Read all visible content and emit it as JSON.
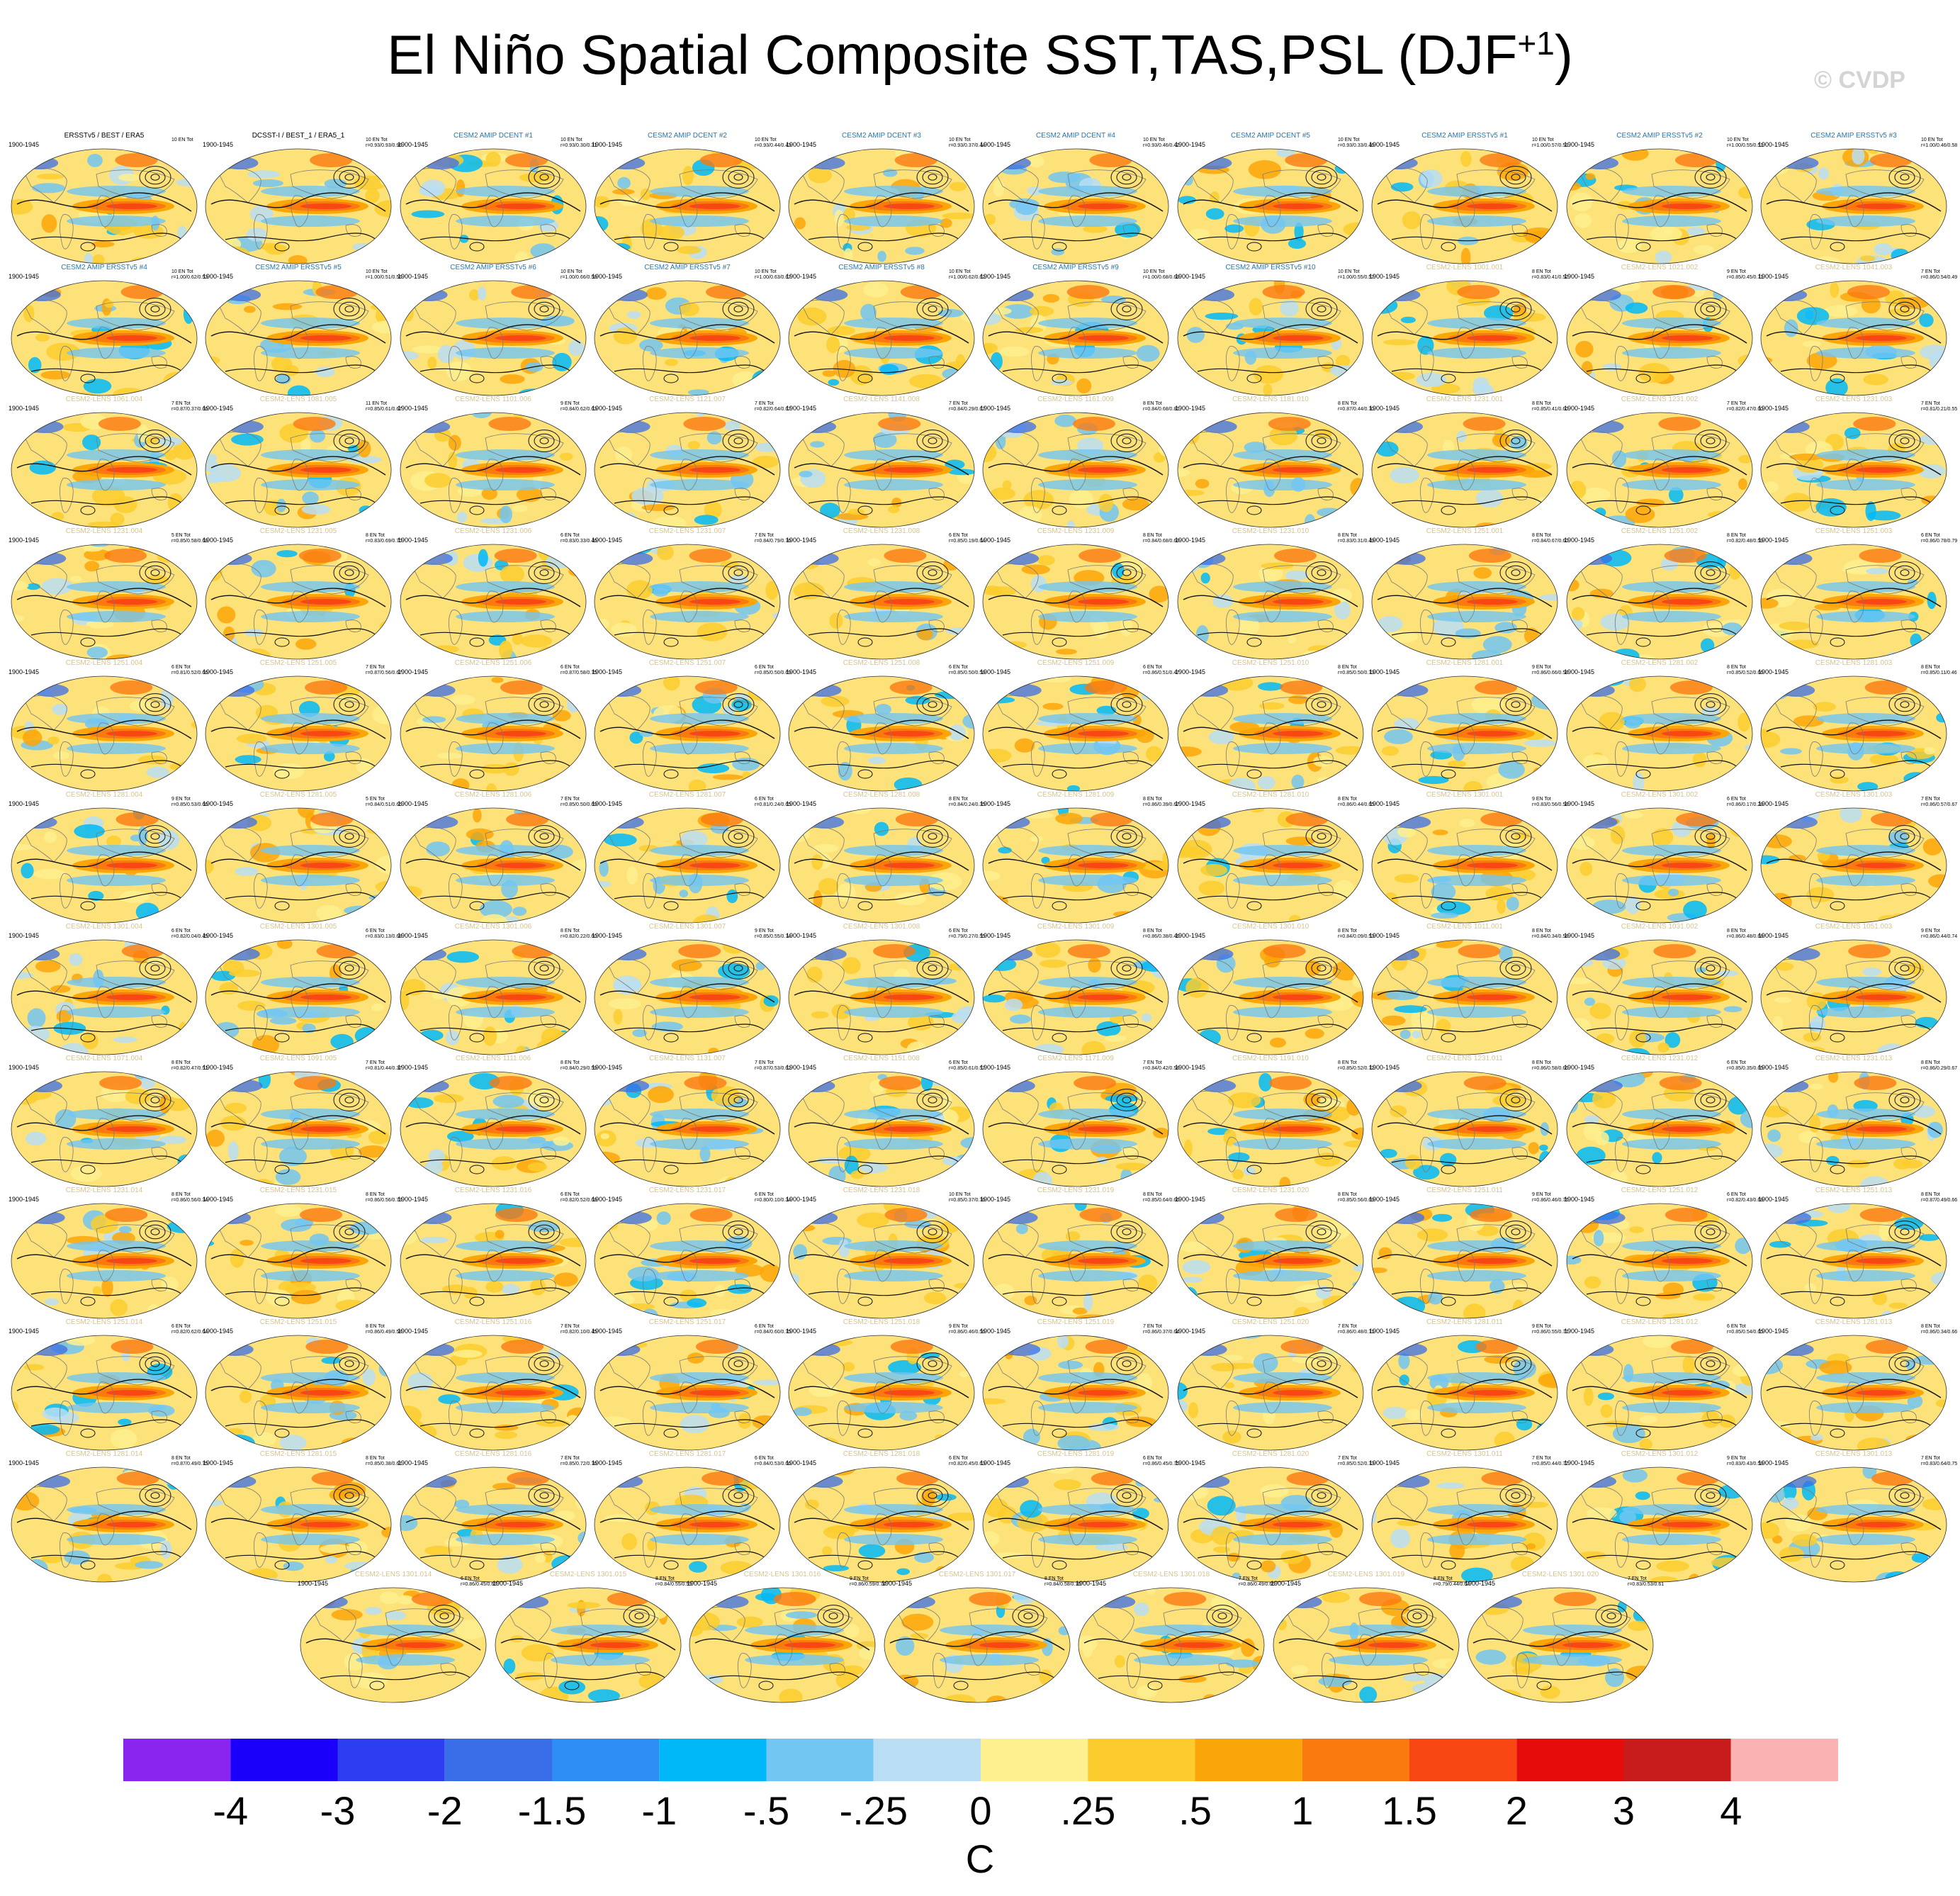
{
  "title": {
    "main": "El Niño Spatial Composite SST,TAS,PSL (DJF",
    "sup": "+1",
    "close": ")"
  },
  "watermark": "© CVDP",
  "colors": {
    "obs_title": "#000000",
    "amip_title": "#1f77b4",
    "lens_title": "#d8c48a",
    "ocean_base": "#fde27a",
    "land_base": "#fce9a0"
  },
  "panels": [
    {
      "title": "ERSSTv5 / BEST / ERA5",
      "period": "1900-1945",
      "s1": "10 EN Tot",
      "s2": "",
      "kind": "obs"
    },
    {
      "title": "DCSST-I / BEST_1 / ERA5_1",
      "period": "1900-1945",
      "s1": "10 EN Tot",
      "s2": "r=0.93/0.93/0.96",
      "kind": "obs"
    },
    {
      "title": "CESM2 AMIP DCENT #1",
      "period": "1900-1945",
      "s1": "10 EN Tot",
      "s2": "r=0.93/0.30/0.31",
      "kind": "amip"
    },
    {
      "title": "CESM2 AMIP DCENT #2",
      "period": "1900-1945",
      "s1": "10 EN Tot",
      "s2": "r=0.93/0.44/0.43",
      "kind": "amip"
    },
    {
      "title": "CESM2 AMIP DCENT #3",
      "period": "1900-1945",
      "s1": "10 EN Tot",
      "s2": "r=0.93/0.37/0.44",
      "kind": "amip"
    },
    {
      "title": "CESM2 AMIP DCENT #4",
      "period": "1900-1945",
      "s1": "10 EN Tot",
      "s2": "r=0.93/0.46/0.42",
      "kind": "amip"
    },
    {
      "title": "CESM2 AMIP DCENT #5",
      "period": "1900-1945",
      "s1": "10 EN Tot",
      "s2": "r=0.93/0.33/0.46",
      "kind": "amip"
    },
    {
      "title": "CESM2 AMIP ERSSTv5 #1",
      "period": "1900-1945",
      "s1": "10 EN Tot",
      "s2": "r=1.00/0.57/0.51",
      "kind": "amip"
    },
    {
      "title": "CESM2 AMIP ERSSTv5 #2",
      "period": "1900-1945",
      "s1": "10 EN Tot",
      "s2": "r=1.00/0.55/0.51",
      "kind": "amip"
    },
    {
      "title": "CESM2 AMIP ERSSTv5 #3",
      "period": "1900-1945",
      "s1": "10 EN Tot",
      "s2": "r=1.00/0.46/0.58",
      "kind": "amip"
    },
    {
      "title": "CESM2 AMIP ERSSTv5 #4",
      "period": "1900-1945",
      "s1": "10 EN Tot",
      "s2": "r=1.00/0.62/0.53",
      "kind": "amip"
    },
    {
      "title": "CESM2 AMIP ERSSTv5 #5",
      "period": "1900-1945",
      "s1": "10 EN Tot",
      "s2": "r=1.00/0.51/0.56",
      "kind": "amip"
    },
    {
      "title": "CESM2 AMIP ERSSTv5 #6",
      "period": "1900-1945",
      "s1": "10 EN Tot",
      "s2": "r=1.00/0.66/0.58",
      "kind": "amip"
    },
    {
      "title": "CESM2 AMIP ERSSTv5 #7",
      "period": "1900-1945",
      "s1": "10 EN Tot",
      "s2": "r=1.00/0.63/0.67",
      "kind": "amip"
    },
    {
      "title": "CESM2 AMIP ERSSTv5 #8",
      "period": "1900-1945",
      "s1": "10 EN Tot",
      "s2": "r=1.00/0.62/0.62",
      "kind": "amip"
    },
    {
      "title": "CESM2 AMIP ERSSTv5 #9",
      "period": "1900-1945",
      "s1": "10 EN Tot",
      "s2": "r=1.00/0.68/0.69",
      "kind": "amip"
    },
    {
      "title": "CESM2 AMIP ERSSTv5 #10",
      "period": "1900-1945",
      "s1": "10 EN Tot",
      "s2": "r=1.00/0.55/0.57",
      "kind": "amip"
    },
    {
      "title": "CESM2-LENS 1001.001",
      "period": "1900-1945",
      "s1": "8 EN Tot",
      "s2": "r=0.83/0.41/0.52",
      "kind": "lens"
    },
    {
      "title": "CESM2-LENS 1021.002",
      "period": "1900-1945",
      "s1": "9 EN Tot",
      "s2": "r=0.85/0.45/0.71",
      "kind": "lens"
    },
    {
      "title": "CESM2-LENS 1041.003",
      "period": "1900-1945",
      "s1": "7 EN Tot",
      "s2": "r=0.86/0.54/0.49",
      "kind": "lens"
    },
    {
      "title": "CESM2-LENS 1061.004",
      "period": "1900-1945",
      "s1": "7 EN Tot",
      "s2": "r=0.87/0.37/0.66",
      "kind": "lens"
    },
    {
      "title": "CESM2-LENS 1081.005",
      "period": "1900-1945",
      "s1": "11 EN Tot",
      "s2": "r=0.85/0.61/0.67",
      "kind": "lens"
    },
    {
      "title": "CESM2-LENS 1101.006",
      "period": "1900-1945",
      "s1": "9 EN Tot",
      "s2": "r=0.84/0.62/0.63",
      "kind": "lens"
    },
    {
      "title": "CESM2-LENS 1121.007",
      "period": "1900-1945",
      "s1": "7 EN Tot",
      "s2": "r=0.82/0.64/0.67",
      "kind": "lens"
    },
    {
      "title": "CESM2-LENS 1141.008",
      "period": "1900-1945",
      "s1": "7 EN Tot",
      "s2": "r=0.84/0.29/0.67",
      "kind": "lens"
    },
    {
      "title": "CESM2-LENS 1161.009",
      "period": "1900-1945",
      "s1": "8 EN Tot",
      "s2": "r=0.84/0.68/0.81",
      "kind": "lens"
    },
    {
      "title": "CESM2-LENS 1181.010",
      "period": "1900-1945",
      "s1": "8 EN Tot",
      "s2": "r=0.87/0.44/0.70",
      "kind": "lens"
    },
    {
      "title": "CESM2-LENS 1231.001",
      "period": "1900-1945",
      "s1": "8 EN Tot",
      "s2": "r=0.85/0.41/0.60",
      "kind": "lens"
    },
    {
      "title": "CESM2-LENS 1231.002",
      "period": "1900-1945",
      "s1": "7 EN Tot",
      "s2": "r=0.82/0.47/0.60",
      "kind": "lens"
    },
    {
      "title": "CESM2-LENS 1231.003",
      "period": "1900-1945",
      "s1": "7 EN Tot",
      "s2": "r=0.81/0.21/0.55",
      "kind": "lens"
    },
    {
      "title": "CESM2-LENS 1231.004",
      "period": "1900-1945",
      "s1": "5 EN Tot",
      "s2": "r=0.85/0.58/0.68",
      "kind": "lens"
    },
    {
      "title": "CESM2-LENS 1231.005",
      "period": "1900-1945",
      "s1": "8 EN Tot",
      "s2": "r=0.83/0.69/0.70",
      "kind": "lens"
    },
    {
      "title": "CESM2-LENS 1231.006",
      "period": "1900-1945",
      "s1": "6 EN Tot",
      "s2": "r=0.83/0.33/0.46",
      "kind": "lens"
    },
    {
      "title": "CESM2-LENS 1231.007",
      "period": "1900-1945",
      "s1": "7 EN Tot",
      "s2": "r=0.84/0.79/0.76",
      "kind": "lens"
    },
    {
      "title": "CESM2-LENS 1231.008",
      "period": "1900-1945",
      "s1": "6 EN Tot",
      "s2": "r=0.85/0.19/0.64",
      "kind": "lens"
    },
    {
      "title": "CESM2-LENS 1231.009",
      "period": "1900-1945",
      "s1": "8 EN Tot",
      "s2": "r=0.84/0.68/0.69",
      "kind": "lens"
    },
    {
      "title": "CESM2-LENS 1231.010",
      "period": "1900-1945",
      "s1": "8 EN Tot",
      "s2": "r=0.83/0.31/0.49",
      "kind": "lens"
    },
    {
      "title": "CESM2-LENS 1251.001",
      "period": "1900-1945",
      "s1": "8 EN Tot",
      "s2": "r=0.84/0.67/0.60",
      "kind": "lens"
    },
    {
      "title": "CESM2-LENS 1251.002",
      "period": "1900-1945",
      "s1": "8 EN Tot",
      "s2": "r=0.82/0.48/0.59",
      "kind": "lens"
    },
    {
      "title": "CESM2-LENS 1251.003",
      "period": "1900-1945",
      "s1": "6 EN Tot",
      "s2": "r=0.86/0.78/0.79",
      "kind": "lens"
    },
    {
      "title": "CESM2-LENS 1251.004",
      "period": "1900-1945",
      "s1": "6 EN Tot",
      "s2": "r=0.81/0.52/0.66",
      "kind": "lens"
    },
    {
      "title": "CESM2-LENS 1251.005",
      "period": "1900-1945",
      "s1": "7 EN Tot",
      "s2": "r=0.87/0.56/0.67",
      "kind": "lens"
    },
    {
      "title": "CESM2-LENS 1251.006",
      "period": "1900-1945",
      "s1": "6 EN Tot",
      "s2": "r=0.87/0.58/0.75",
      "kind": "lens"
    },
    {
      "title": "CESM2-LENS 1251.007",
      "period": "1900-1945",
      "s1": "6 EN Tot",
      "s2": "r=0.85/0.50/0.69",
      "kind": "lens"
    },
    {
      "title": "CESM2-LENS 1251.008",
      "period": "1900-1945",
      "s1": "6 EN Tot",
      "s2": "r=0.85/0.50/0.58",
      "kind": "lens"
    },
    {
      "title": "CESM2-LENS 1251.009",
      "period": "1900-1945",
      "s1": "6 EN Tot",
      "s2": "r=0.86/0.51/0.47",
      "kind": "lens"
    },
    {
      "title": "CESM2-LENS 1251.010",
      "period": "1900-1945",
      "s1": "8 EN Tot",
      "s2": "r=0.85/0.50/0.73",
      "kind": "lens"
    },
    {
      "title": "CESM2-LENS 1281.001",
      "period": "1900-1945",
      "s1": "9 EN Tot",
      "s2": "r=0.86/0.66/0.58",
      "kind": "lens"
    },
    {
      "title": "CESM2-LENS 1281.002",
      "period": "1900-1945",
      "s1": "8 EN Tot",
      "s2": "r=0.85/0.52/0.66",
      "kind": "lens"
    },
    {
      "title": "CESM2-LENS 1281.003",
      "period": "1900-1945",
      "s1": "8 EN Tot",
      "s2": "r=0.85/0.11/0.46",
      "kind": "lens"
    },
    {
      "title": "CESM2-LENS 1281.004",
      "period": "1900-1945",
      "s1": "9 EN Tot",
      "s2": "r=0.85/0.53/0.66",
      "kind": "lens"
    },
    {
      "title": "CESM2-LENS 1281.005",
      "period": "1900-1945",
      "s1": "5 EN Tot",
      "s2": "r=0.84/0.51/0.65",
      "kind": "lens"
    },
    {
      "title": "CESM2-LENS 1281.006",
      "period": "1900-1945",
      "s1": "7 EN Tot",
      "s2": "r=0.85/0.50/0.69",
      "kind": "lens"
    },
    {
      "title": "CESM2-LENS 1281.007",
      "period": "1900-1945",
      "s1": "6 EN Tot",
      "s2": "r=0.81/0.24/0.65",
      "kind": "lens"
    },
    {
      "title": "CESM2-LENS 1281.008",
      "period": "1900-1945",
      "s1": "8 EN Tot",
      "s2": "r=0.84/0.24/0.35",
      "kind": "lens"
    },
    {
      "title": "CESM2-LENS 1281.009",
      "period": "1900-1945",
      "s1": "8 EN Tot",
      "s2": "r=0.86/0.39/0.67",
      "kind": "lens"
    },
    {
      "title": "CESM2-LENS 1281.010",
      "period": "1900-1945",
      "s1": "8 EN Tot",
      "s2": "r=0.86/0.44/0.65",
      "kind": "lens"
    },
    {
      "title": "CESM2-LENS 1301.001",
      "period": "1900-1945",
      "s1": "9 EN Tot",
      "s2": "r=0.83/0.56/0.58",
      "kind": "lens"
    },
    {
      "title": "CESM2-LENS 1301.002",
      "period": "1900-1945",
      "s1": "6 EN Tot",
      "s2": "r=0.86/0.17/0.28",
      "kind": "lens"
    },
    {
      "title": "CESM2-LENS 1301.003",
      "period": "1900-1945",
      "s1": "7 EN Tot",
      "s2": "r=0.86/0.57/0.67",
      "kind": "lens"
    },
    {
      "title": "CESM2-LENS 1301.004",
      "period": "1900-1945",
      "s1": "6 EN Tot",
      "s2": "r=0.82/0.04/0.45",
      "kind": "lens"
    },
    {
      "title": "CESM2-LENS 1301.005",
      "period": "1900-1945",
      "s1": "6 EN Tot",
      "s2": "r=0.83/0.13/0.68",
      "kind": "lens"
    },
    {
      "title": "CESM2-LENS 1301.006",
      "period": "1900-1945",
      "s1": "8 EN Tot",
      "s2": "r=0.82/0.22/0.60",
      "kind": "lens"
    },
    {
      "title": "CESM2-LENS 1301.007",
      "period": "1900-1945",
      "s1": "9 EN Tot",
      "s2": "r=0.85/0.55/0.74",
      "kind": "lens"
    },
    {
      "title": "CESM2-LENS 1301.008",
      "period": "1900-1945",
      "s1": "6 EN Tot",
      "s2": "r=0.79/0.27/0.55",
      "kind": "lens"
    },
    {
      "title": "CESM2-LENS 1301.009",
      "period": "1900-1945",
      "s1": "8 EN Tot",
      "s2": "r=0.86/0.38/0.46",
      "kind": "lens"
    },
    {
      "title": "CESM2-LENS 1301.010",
      "period": "1900-1945",
      "s1": "8 EN Tot",
      "s2": "r=0.84/0.09/0.53",
      "kind": "lens"
    },
    {
      "title": "CESM2-LENS 1011.001",
      "period": "1900-1945",
      "s1": "8 EN Tot",
      "s2": "r=0.84/0.34/0.58",
      "kind": "lens"
    },
    {
      "title": "CESM2-LENS 1031.002",
      "period": "1900-1945",
      "s1": "8 EN Tot",
      "s2": "r=0.86/0.48/0.68",
      "kind": "lens"
    },
    {
      "title": "CESM2-LENS 1051.003",
      "period": "1900-1945",
      "s1": "9 EN Tot",
      "s2": "r=0.86/0.44/0.74",
      "kind": "lens"
    },
    {
      "title": "CESM2-LENS 1071.004",
      "period": "1900-1945",
      "s1": "8 EN Tot",
      "s2": "r=0.82/0.47/0.51",
      "kind": "lens"
    },
    {
      "title": "CESM2-LENS 1091.005",
      "period": "1900-1945",
      "s1": "7 EN Tot",
      "s2": "r=0.81/0.44/0.37",
      "kind": "lens"
    },
    {
      "title": "CESM2-LENS 1111.006",
      "period": "1900-1945",
      "s1": "8 EN Tot",
      "s2": "r=0.84/0.29/0.59",
      "kind": "lens"
    },
    {
      "title": "CESM2-LENS 1131.007",
      "period": "1900-1945",
      "s1": "7 EN Tot",
      "s2": "r=0.87/0.53/0.62",
      "kind": "lens"
    },
    {
      "title": "CESM2-LENS 1151.008",
      "period": "1900-1945",
      "s1": "6 EN Tot",
      "s2": "r=0.85/0.61/0.57",
      "kind": "lens"
    },
    {
      "title": "CESM2-LENS 1171.009",
      "period": "1900-1945",
      "s1": "7 EN Tot",
      "s2": "r=0.84/0.42/0.58",
      "kind": "lens"
    },
    {
      "title": "CESM2-LENS 1191.010",
      "period": "1900-1945",
      "s1": "8 EN Tot",
      "s2": "r=0.85/0.52/0.72",
      "kind": "lens"
    },
    {
      "title": "CESM2-LENS 1231.011",
      "period": "1900-1945",
      "s1": "8 EN Tot",
      "s2": "r=0.86/0.58/0.65",
      "kind": "lens"
    },
    {
      "title": "CESM2-LENS 1231.012",
      "period": "1900-1945",
      "s1": "6 EN Tot",
      "s2": "r=0.85/0.35/0.65",
      "kind": "lens"
    },
    {
      "title": "CESM2-LENS 1231.013",
      "period": "1900-1945",
      "s1": "8 EN Tot",
      "s2": "r=0.86/0.29/0.67",
      "kind": "lens"
    },
    {
      "title": "CESM2-LENS 1231.014",
      "period": "1900-1945",
      "s1": "8 EN Tot",
      "s2": "r=0.86/0.56/0.34",
      "kind": "lens"
    },
    {
      "title": "CESM2-LENS 1231.015",
      "period": "1900-1945",
      "s1": "8 EN Tot",
      "s2": "r=0.86/0.56/0.73",
      "kind": "lens"
    },
    {
      "title": "CESM2-LENS 1231.016",
      "period": "1900-1945",
      "s1": "6 EN Tot",
      "s2": "r=0.82/0.52/0.68",
      "kind": "lens"
    },
    {
      "title": "CESM2-LENS 1231.017",
      "period": "1900-1945",
      "s1": "6 EN Tot",
      "s2": "r=0.80/0.10/0.34",
      "kind": "lens"
    },
    {
      "title": "CESM2-LENS 1231.018",
      "period": "1900-1945",
      "s1": "10 EN Tot",
      "s2": "r=0.85/0.37/0.76",
      "kind": "lens"
    },
    {
      "title": "CESM2-LENS 1231.019",
      "period": "1900-1945",
      "s1": "8 EN Tot",
      "s2": "r=0.85/0.64/0.66",
      "kind": "lens"
    },
    {
      "title": "CESM2-LENS 1231.020",
      "period": "1900-1945",
      "s1": "8 EN Tot",
      "s2": "r=0.85/0.56/0.69",
      "kind": "lens"
    },
    {
      "title": "CESM2-LENS 1251.011",
      "period": "1900-1945",
      "s1": "9 EN Tot",
      "s2": "r=0.86/0.46/0.76",
      "kind": "lens"
    },
    {
      "title": "CESM2-LENS 1251.012",
      "period": "1900-1945",
      "s1": "6 EN Tot",
      "s2": "r=0.82/0.43/0.68",
      "kind": "lens"
    },
    {
      "title": "CESM2-LENS 1251.013",
      "period": "1900-1945",
      "s1": "8 EN Tot",
      "s2": "r=0.87/0.49/0.66",
      "kind": "lens"
    },
    {
      "title": "CESM2-LENS 1251.014",
      "period": "1900-1945",
      "s1": "6 EN Tot",
      "s2": "r=0.82/0.62/0.64",
      "kind": "lens"
    },
    {
      "title": "CESM2-LENS 1251.015",
      "period": "1900-1945",
      "s1": "8 EN Tot",
      "s2": "r=0.86/0.49/0.58",
      "kind": "lens"
    },
    {
      "title": "CESM2-LENS 1251.016",
      "period": "1900-1945",
      "s1": "7 EN Tot",
      "s2": "r=0.82/0.10/0.45",
      "kind": "lens"
    },
    {
      "title": "CESM2-LENS 1251.017",
      "period": "1900-1945",
      "s1": "6 EN Tot",
      "s2": "r=0.84/0.60/0.75",
      "kind": "lens"
    },
    {
      "title": "CESM2-LENS 1251.018",
      "period": "1900-1945",
      "s1": "9 EN Tot",
      "s2": "r=0.86/0.46/0.56",
      "kind": "lens"
    },
    {
      "title": "CESM2-LENS 1251.019",
      "period": "1900-1945",
      "s1": "7 EN Tot",
      "s2": "r=0.86/0.37/0.64",
      "kind": "lens"
    },
    {
      "title": "CESM2-LENS 1251.020",
      "period": "1900-1945",
      "s1": "7 EN Tot",
      "s2": "r=0.86/0.48/0.71",
      "kind": "lens"
    },
    {
      "title": "CESM2-LENS 1281.011",
      "period": "1900-1945",
      "s1": "9 EN Tot",
      "s2": "r=0.86/0.55/0.71",
      "kind": "lens"
    },
    {
      "title": "CESM2-LENS 1281.012",
      "period": "1900-1945",
      "s1": "6 EN Tot",
      "s2": "r=0.85/0.54/0.65",
      "kind": "lens"
    },
    {
      "title": "CESM2-LENS 1281.013",
      "period": "1900-1945",
      "s1": "8 EN Tot",
      "s2": "r=0.86/0.34/0.66",
      "kind": "lens"
    },
    {
      "title": "CESM2-LENS 1281.014",
      "period": "1900-1945",
      "s1": "8 EN Tot",
      "s2": "r=0.87/0.49/0.75",
      "kind": "lens"
    },
    {
      "title": "CESM2-LENS 1281.015",
      "period": "1900-1945",
      "s1": "8 EN Tot",
      "s2": "r=0.85/0.38/0.61",
      "kind": "lens"
    },
    {
      "title": "CESM2-LENS 1281.016",
      "period": "1900-1945",
      "s1": "7 EN Tot",
      "s2": "r=0.85/0.72/0.76",
      "kind": "lens"
    },
    {
      "title": "CESM2-LENS 1281.017",
      "period": "1900-1945",
      "s1": "6 EN Tot",
      "s2": "r=0.84/0.53/0.66",
      "kind": "lens"
    },
    {
      "title": "CESM2-LENS 1281.018",
      "period": "1900-1945",
      "s1": "6 EN Tot",
      "s2": "r=0.82/0.45/0.63",
      "kind": "lens"
    },
    {
      "title": "CESM2-LENS 1281.019",
      "period": "1900-1945",
      "s1": "6 EN Tot",
      "s2": "r=0.86/0.45/0.75",
      "kind": "lens"
    },
    {
      "title": "CESM2-LENS 1281.020",
      "period": "1900-1945",
      "s1": "7 EN Tot",
      "s2": "r=0.85/0.52/0.73",
      "kind": "lens"
    },
    {
      "title": "CESM2-LENS 1301.011",
      "period": "1900-1945",
      "s1": "7 EN Tot",
      "s2": "r=0.85/0.44/0.72",
      "kind": "lens"
    },
    {
      "title": "CESM2-LENS 1301.012",
      "period": "1900-1945",
      "s1": "9 EN Tot",
      "s2": "r=0.83/0.43/0.58",
      "kind": "lens"
    },
    {
      "title": "CESM2-LENS 1301.013",
      "period": "1900-1945",
      "s1": "7 EN Tot",
      "s2": "r=0.83/0.64/0.75",
      "kind": "lens"
    },
    {
      "title": "CESM2-LENS 1301.014",
      "period": "1900-1945",
      "s1": "6 EN Tot",
      "s2": "r=0.86/0.45/0.63",
      "kind": "lens"
    },
    {
      "title": "CESM2-LENS 1301.015",
      "period": "1900-1945",
      "s1": "8 EN Tot",
      "s2": "r=0.84/0.55/0.59",
      "kind": "lens"
    },
    {
      "title": "CESM2-LENS 1301.016",
      "period": "1900-1945",
      "s1": "9 EN Tot",
      "s2": "r=0.86/0.59/0.74",
      "kind": "lens"
    },
    {
      "title": "CESM2-LENS 1301.017",
      "period": "1900-1945",
      "s1": "8 EN Tot",
      "s2": "r=0.84/0.58/0.76",
      "kind": "lens"
    },
    {
      "title": "CESM2-LENS 1301.018",
      "period": "1900-1945",
      "s1": "7 EN Tot",
      "s2": "r=0.86/0.49/0.65",
      "kind": "lens"
    },
    {
      "title": "CESM2-LENS 1301.019",
      "period": "1900-1945",
      "s1": "8 EN Tot",
      "s2": "r=0.79/0.44/0.64",
      "kind": "lens"
    },
    {
      "title": "CESM2-LENS 1301.020",
      "period": "1900-1945",
      "s1": "7 EN Tot",
      "s2": "r=0.83/0.53/0.61",
      "kind": "lens"
    }
  ],
  "colorbar": {
    "unit": "C",
    "labels": [
      "-4",
      "-3",
      "-2",
      "-1.5",
      "-1",
      "-.5",
      "-.25",
      "0",
      ".25",
      ".5",
      "1",
      "1.5",
      "2",
      "3",
      "4"
    ],
    "colors": [
      "#8a25f0",
      "#1a00fa",
      "#2c3ef0",
      "#3a6ee8",
      "#2e8ef5",
      "#00b8f8",
      "#72c6f2",
      "#b9def4",
      "#fef08e",
      "#fccc2e",
      "#fba608",
      "#fa7a10",
      "#f94714",
      "#e60c0c",
      "#c81c1c",
      "#fbb2b2"
    ]
  }
}
